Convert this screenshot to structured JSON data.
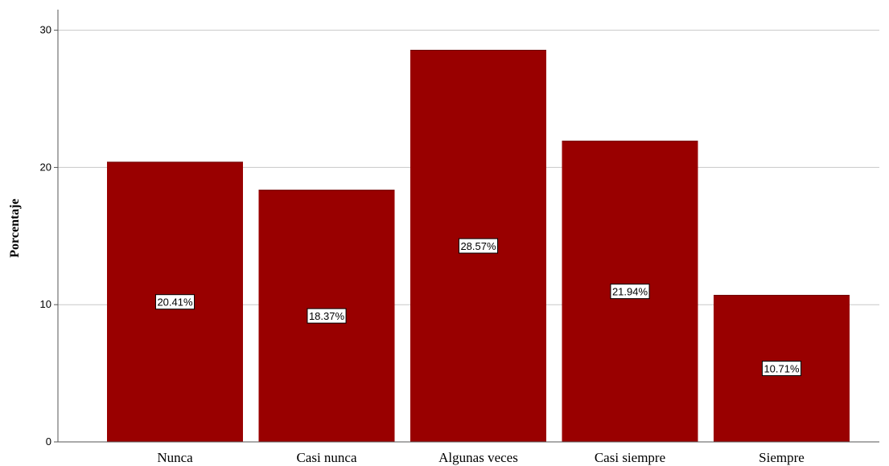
{
  "chart_data": {
    "type": "bar",
    "categories": [
      "Nunca",
      "Casi nunca",
      "Algunas veces",
      "Casi siempre",
      "Siempre"
    ],
    "values": [
      20.41,
      18.37,
      28.57,
      21.94,
      10.71
    ],
    "data_labels": [
      "20.41%",
      "18.37%",
      "28.57%",
      "21.94%",
      "10.71%"
    ],
    "ylabel": "Porcentaje",
    "xlabel": "",
    "ylim": [
      0,
      31.5
    ],
    "yticks": [
      0,
      10,
      20,
      30
    ],
    "ytick_labels": [
      "0",
      "10",
      "20",
      "30"
    ],
    "grid": true,
    "bar_color": "#990000",
    "grid_color": "#c8c8c8"
  }
}
